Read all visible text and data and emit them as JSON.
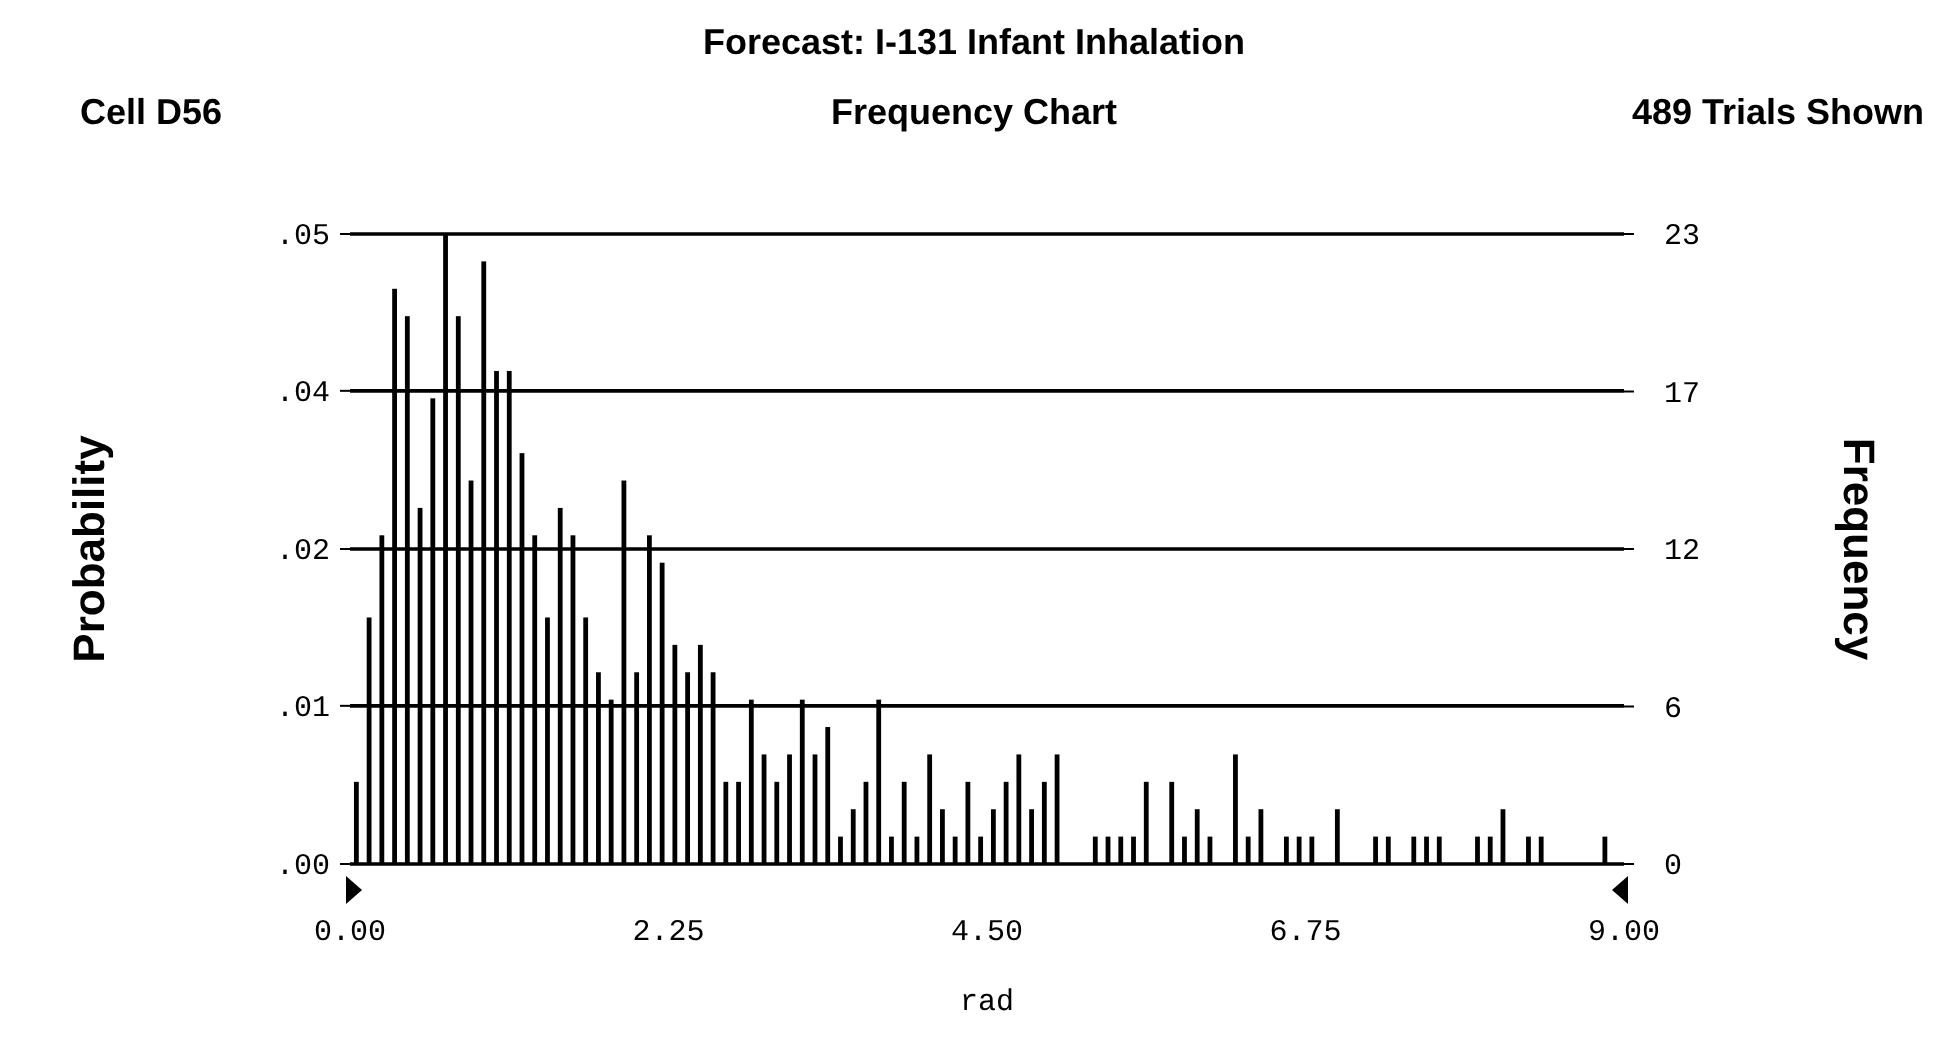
{
  "chart_data": {
    "type": "histogram",
    "title": "Forecast: I-131 Infant Inhalation",
    "subtitle": "Frequency Chart",
    "annotations": [
      "Cell D56",
      "489 Trials Shown"
    ],
    "xlabel": "rad",
    "ylabel": "Probability",
    "y2label": "Frequency",
    "bins": [
      0,
      0.09,
      0.18,
      0.27,
      0.36,
      0.45,
      0.54,
      0.63,
      0.72,
      0.81,
      0.9,
      0.99,
      1.08,
      1.17,
      1.26,
      1.35,
      1.44,
      1.53,
      1.62,
      1.71,
      1.8,
      1.89,
      1.98,
      2.07,
      2.16,
      2.25,
      2.34,
      2.43,
      2.52,
      2.61,
      2.7,
      2.79,
      2.88,
      2.97,
      3.06,
      3.15,
      3.24,
      3.33,
      3.42,
      3.51,
      3.6,
      3.69,
      3.78,
      3.87,
      3.96,
      4.05,
      4.14,
      4.23,
      4.32,
      4.41,
      4.5,
      4.59,
      4.68,
      4.77,
      4.86,
      4.95,
      5.04,
      5.13,
      5.22,
      5.31,
      5.4,
      5.49,
      5.58,
      5.67,
      5.76,
      5.85,
      5.94,
      6.03,
      6.12,
      6.21,
      6.3,
      6.39,
      6.48,
      6.57,
      6.66,
      6.75,
      6.84,
      6.93,
      7.02,
      7.11,
      7.2,
      7.29,
      7.38,
      7.47,
      7.56,
      7.65,
      7.74,
      7.83,
      7.92,
      8.01,
      8.1,
      8.19,
      8.28,
      8.37,
      8.46,
      8.55,
      8.64,
      8.73,
      8.82,
      8.91,
      9
    ],
    "series": [
      {
        "color": "#000000",
        "axis": "y2",
        "values": [
          3,
          9,
          12,
          21,
          20,
          13,
          17,
          23,
          20,
          14,
          22,
          18,
          18,
          15,
          12,
          9,
          13,
          12,
          9,
          7,
          6,
          14,
          7,
          12,
          11,
          8,
          7,
          8,
          7,
          3,
          3,
          6,
          4,
          3,
          4,
          6,
          4,
          5,
          1,
          2,
          3,
          6,
          1,
          3,
          1,
          4,
          2,
          1,
          3,
          1,
          2,
          3,
          4,
          2,
          3,
          4,
          0,
          0,
          1,
          1,
          1,
          1,
          3,
          0,
          3,
          1,
          2,
          1,
          0,
          4,
          1,
          2,
          0,
          1,
          1,
          1,
          0,
          2,
          0,
          0,
          1,
          1,
          0,
          1,
          1,
          1,
          0,
          0,
          1,
          1,
          2,
          0,
          1,
          1,
          0,
          0,
          0,
          0,
          1,
          0
        ]
      }
    ],
    "xlim": [
      0,
      9
    ],
    "xticks": [
      {
        "value": 0,
        "label": "0.00"
      },
      2.25,
      {
        "value": 4.5,
        "label": "4.50"
      },
      6.75,
      {
        "value": 9,
        "label": "9.00"
      }
    ],
    "ylim": [
      0,
      0.047
    ],
    "yticks": [
      {
        "value": 0,
        "label": ".00"
      },
      {
        "value": 0.0118,
        "label": ".01"
      },
      {
        "value": 0.0235,
        "label": ".02"
      },
      {
        "value": 0.0353,
        "label": ".04"
      },
      {
        "value": 0.047,
        "label": ".05"
      }
    ],
    "y2lim": [
      0,
      23
    ],
    "y2ticks": [
      0,
      {
        "value": 5.75,
        "label": "6"
      },
      {
        "value": 11.5,
        "label": "12"
      },
      {
        "value": 17.25,
        "label": "17"
      },
      23
    ],
    "grid": "y"
  }
}
